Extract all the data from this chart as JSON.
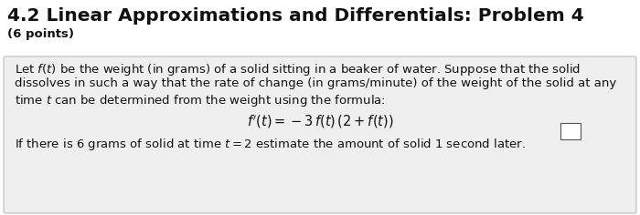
{
  "title": "4.2 Linear Approximations and Differentials: Problem 4",
  "subtitle": "(6 points)",
  "body_line1": "Let $f(t)$ be the weight (in grams) of a solid sitting in a beaker of water. Suppose that the solid",
  "body_line2": "dissolves in such a way that the rate of change (in grams/minute) of the weight of the solid at any",
  "body_line3": "time $t$ can be determined from the weight using the formula:",
  "formula": "$f'(t) = -3\\,f(t)\\,(2 + f(t))$",
  "body_line4": "If there is 6 grams of solid at time $t = 2$ estimate the amount of solid 1 second later.",
  "bg_color": "#ffffff",
  "box_bg": "#efefef",
  "box_edge": "#bbbbbb",
  "title_color": "#111111",
  "text_color": "#111111",
  "title_fontsize": 14.5,
  "subtitle_fontsize": 9.5,
  "body_fontsize": 9.5,
  "formula_fontsize": 10.5,
  "fig_width": 7.0,
  "fig_height": 2.36,
  "dpi": 100
}
